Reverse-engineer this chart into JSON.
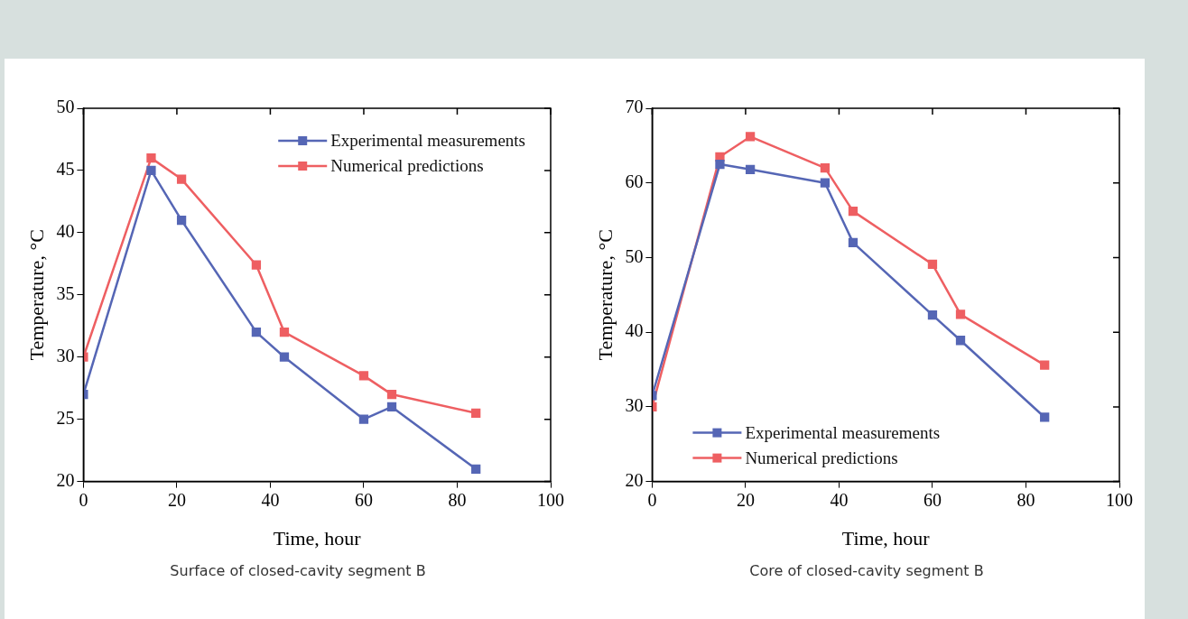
{
  "chart_data": [
    {
      "type": "line",
      "title": "Surface of closed-cavity segment B",
      "xlabel": "Time, hour",
      "ylabel": "Temperature, °C",
      "xlim": [
        0,
        100
      ],
      "xticks": [
        0,
        20,
        40,
        60,
        80,
        100
      ],
      "ylim": [
        20,
        50
      ],
      "yticks": [
        20,
        25,
        30,
        35,
        40,
        45,
        50
      ],
      "marker": "square",
      "legend": "top right",
      "grid": false,
      "series": [
        {
          "name": "Experimental measurements",
          "color": "#5566b5",
          "x": [
            0,
            14.5,
            21,
            37,
            43,
            60,
            66,
            84
          ],
          "values": [
            27,
            45,
            41,
            32,
            30,
            25,
            26,
            21
          ]
        },
        {
          "name": "Numerical predictions",
          "color": "#ee5f62",
          "x": [
            0,
            14.5,
            21,
            37,
            43,
            60,
            66,
            84
          ],
          "values": [
            30,
            46,
            44.3,
            37.4,
            32,
            28.5,
            27,
            25.5
          ]
        }
      ]
    },
    {
      "type": "line",
      "title": "Core of closed-cavity segment B",
      "xlabel": "Time, hour",
      "ylabel": "Temperature, °C",
      "xlim": [
        0,
        100
      ],
      "xticks": [
        0,
        20,
        40,
        60,
        80,
        100
      ],
      "ylim": [
        20,
        70
      ],
      "yticks": [
        20,
        30,
        40,
        50,
        60,
        70
      ],
      "marker": "square",
      "legend": "bottom left",
      "grid": false,
      "series": [
        {
          "name": "Experimental measurements",
          "color": "#5566b5",
          "x": [
            0,
            14.5,
            21,
            37,
            43,
            60,
            66,
            84
          ],
          "values": [
            31.5,
            62.5,
            61.8,
            60,
            52,
            42.3,
            38.9,
            28.6
          ]
        },
        {
          "name": "Numerical predictions",
          "color": "#ee5f62",
          "x": [
            0,
            14.5,
            21,
            37,
            43,
            60,
            66,
            84
          ],
          "values": [
            30,
            63.5,
            66.2,
            62,
            56.2,
            49.1,
            42.4,
            35.6
          ]
        }
      ]
    }
  ]
}
